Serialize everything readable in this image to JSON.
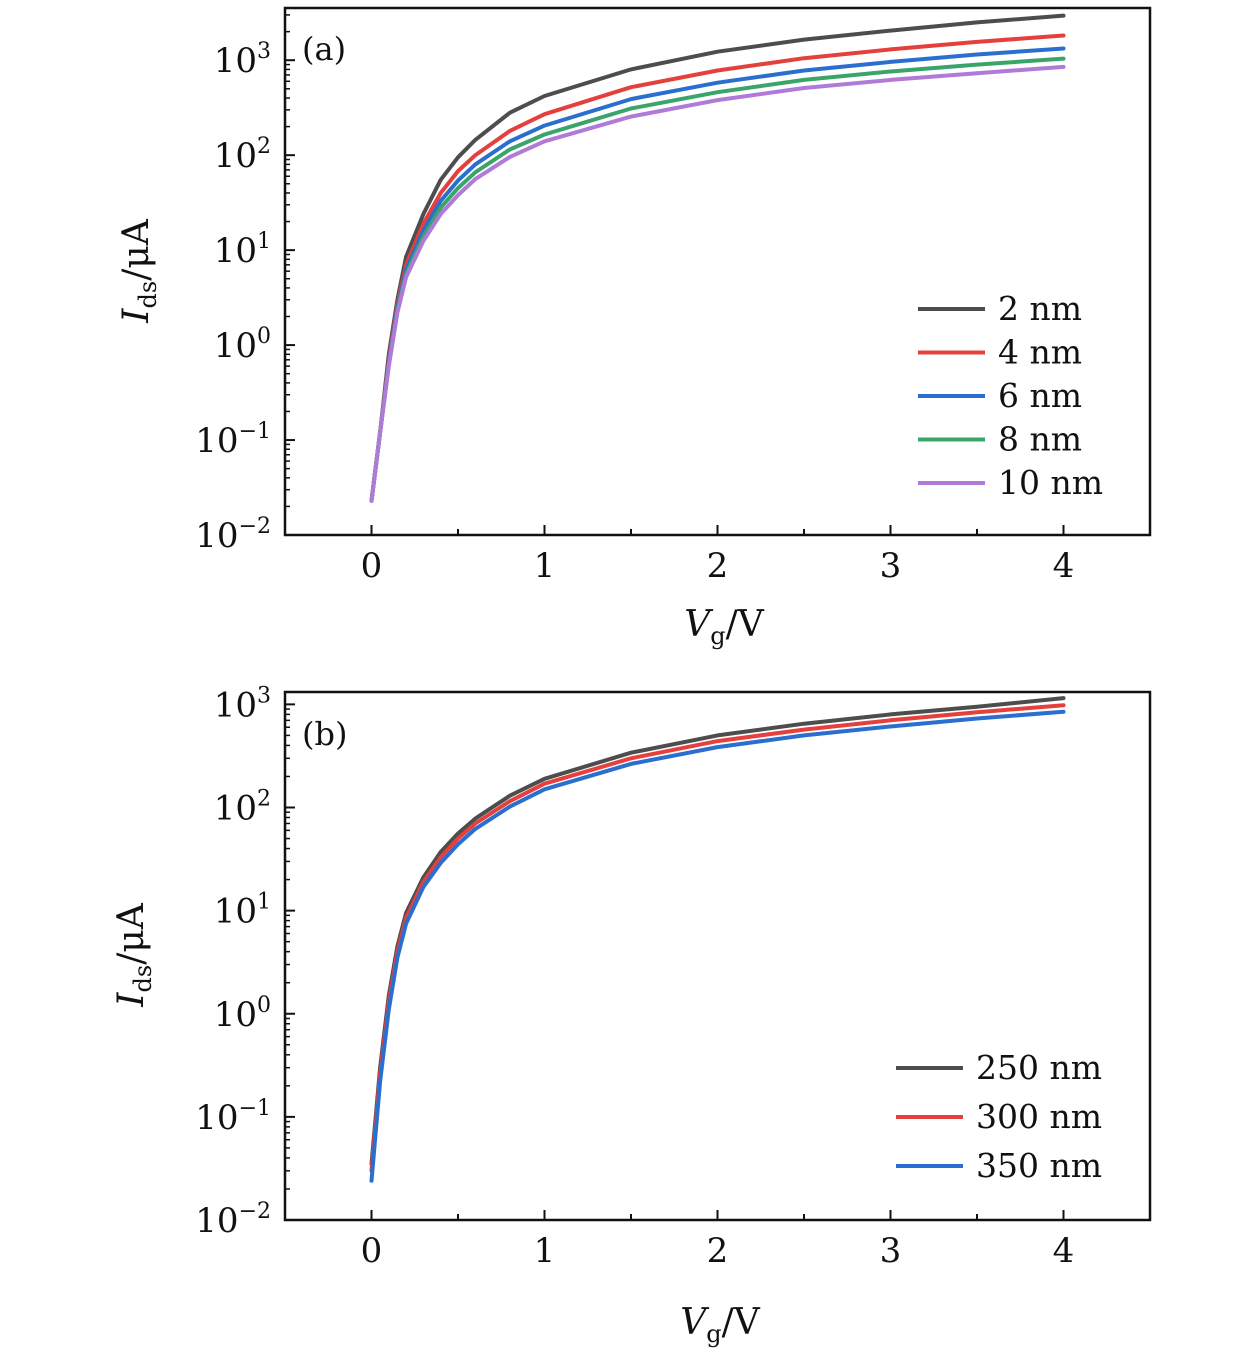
{
  "chart_data": [
    {
      "type": "line",
      "panel_label": "(a)",
      "xlabel": {
        "main": "V",
        "sub": "g",
        "unit": "/V"
      },
      "ylabel": {
        "main": "I",
        "sub": "ds",
        "unit": "/μA"
      },
      "xlim": [
        -0.5,
        4.5
      ],
      "ylim_log10": [
        -2,
        3.55
      ],
      "yscale": "log",
      "x_ticks": [
        0,
        1,
        2,
        3,
        4
      ],
      "y_tick_exponents": [
        -2,
        -1,
        0,
        1,
        2,
        3
      ],
      "y_tick_labels": [
        {
          "base": "10",
          "exp": "−2"
        },
        {
          "base": "10",
          "exp": "−1"
        },
        {
          "base": "10",
          "exp": "0"
        },
        {
          "base": "10",
          "exp": "1"
        },
        {
          "base": "10",
          "exp": "2"
        },
        {
          "base": "10",
          "exp": "3"
        }
      ],
      "legend_position": "lower-right",
      "grid": false,
      "x": [
        0,
        0.05,
        0.1,
        0.15,
        0.2,
        0.3,
        0.4,
        0.5,
        0.6,
        0.8,
        1.0,
        1.5,
        2.0,
        2.5,
        3.0,
        3.5,
        4.0
      ],
      "series": [
        {
          "name": "2 nm",
          "color": "#4d4d4d",
          "values": [
            0.023,
            0.12,
            0.8,
            3.0,
            8.5,
            24,
            55,
            95,
            145,
            280,
            420,
            800,
            1230,
            1650,
            2050,
            2500,
            2950
          ]
        },
        {
          "name": "4 nm",
          "color": "#e3403e",
          "values": [
            0.023,
            0.12,
            0.7,
            2.7,
            7.0,
            19,
            40,
            68,
            100,
            180,
            270,
            520,
            780,
            1050,
            1300,
            1560,
            1820
          ]
        },
        {
          "name": "6 nm",
          "color": "#2a6fd0",
          "values": [
            0.023,
            0.12,
            0.65,
            2.5,
            6.2,
            16,
            33,
            54,
            80,
            140,
            205,
            390,
            580,
            780,
            960,
            1150,
            1330
          ]
        },
        {
          "name": "8 nm",
          "color": "#3aa46a",
          "values": [
            0.023,
            0.12,
            0.62,
            2.3,
            5.6,
            14,
            28,
            45,
            66,
            115,
            165,
            310,
            460,
            620,
            760,
            900,
            1040
          ]
        },
        {
          "name": "10 nm",
          "color": "#b07ad8",
          "values": [
            0.023,
            0.12,
            0.6,
            2.2,
            5.2,
            12.5,
            24,
            38,
            56,
            96,
            140,
            255,
            380,
            510,
            620,
            730,
            850
          ]
        }
      ]
    },
    {
      "type": "line",
      "panel_label": "(b)",
      "xlabel": {
        "main": "V",
        "sub": "g",
        "unit": "/V"
      },
      "ylabel": {
        "main": "I",
        "sub": "ds",
        "unit": "/μA"
      },
      "xlim": [
        -0.5,
        4.5
      ],
      "ylim_log10": [
        -2,
        3.12
      ],
      "yscale": "log",
      "x_ticks": [
        0,
        1,
        2,
        3,
        4
      ],
      "y_tick_exponents": [
        -2,
        -1,
        0,
        1,
        2,
        3
      ],
      "y_tick_labels": [
        {
          "base": "10",
          "exp": "−2"
        },
        {
          "base": "10",
          "exp": "−1"
        },
        {
          "base": "10",
          "exp": "0"
        },
        {
          "base": "10",
          "exp": "1"
        },
        {
          "base": "10",
          "exp": "2"
        },
        {
          "base": "10",
          "exp": "3"
        }
      ],
      "legend_position": "lower-right",
      "grid": false,
      "x": [
        0,
        0.05,
        0.1,
        0.15,
        0.2,
        0.3,
        0.4,
        0.5,
        0.6,
        0.8,
        1.0,
        1.5,
        2.0,
        2.5,
        3.0,
        3.5,
        4.0
      ],
      "series": [
        {
          "name": "250 nm",
          "color": "#4d4d4d",
          "values": [
            0.035,
            0.3,
            1.5,
            4.5,
            9.5,
            21,
            37,
            56,
            78,
            130,
            190,
            340,
            500,
            650,
            800,
            950,
            1150
          ]
        },
        {
          "name": "300 nm",
          "color": "#e3403e",
          "values": [
            0.03,
            0.26,
            1.3,
            4.0,
            8.5,
            19,
            33,
            50,
            70,
            115,
            170,
            300,
            440,
            570,
            700,
            840,
            980
          ]
        },
        {
          "name": "350 nm",
          "color": "#2a6fd0",
          "values": [
            0.024,
            0.22,
            1.1,
            3.5,
            7.5,
            17,
            29,
            44,
            62,
            102,
            150,
            265,
            385,
            500,
            610,
            730,
            850
          ]
        }
      ]
    }
  ]
}
